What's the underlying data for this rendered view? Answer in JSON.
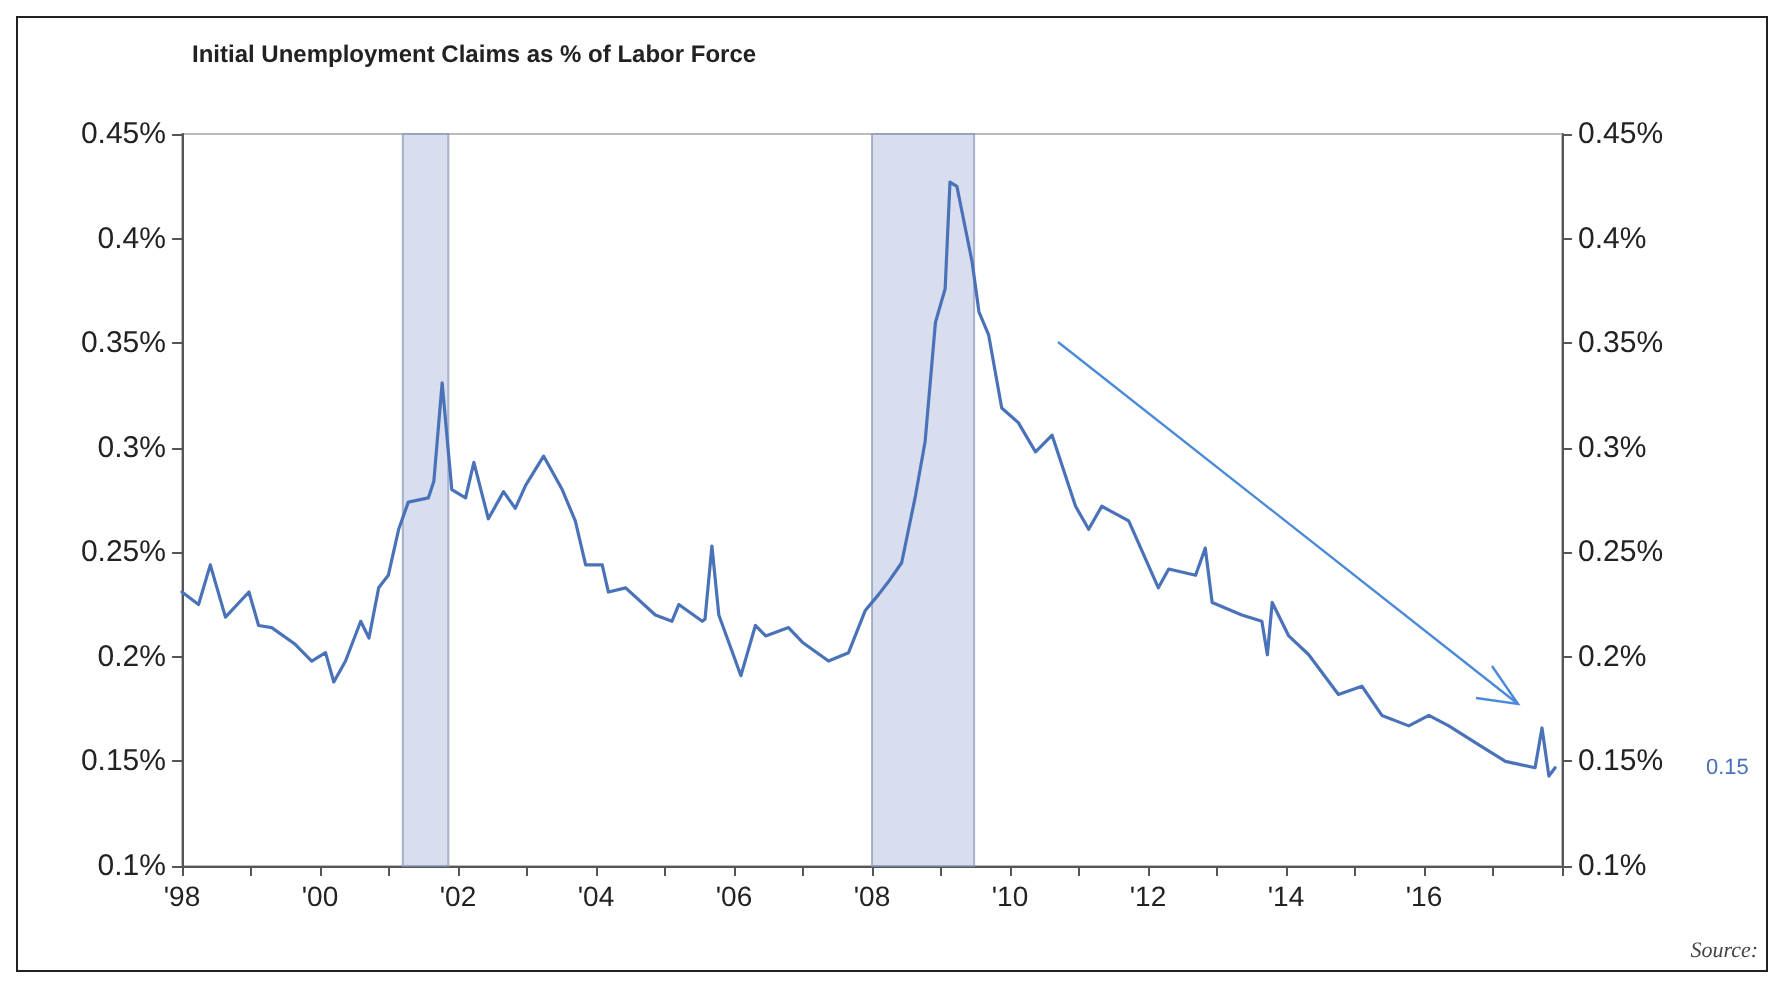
{
  "chart_data": {
    "type": "line",
    "title": "Initial Unemployment Claims as % of Labor Force",
    "x": [
      1998.0,
      1998.24,
      1998.41,
      1998.63,
      1998.97,
      1999.11,
      1999.3,
      1999.64,
      1999.88,
      2000.08,
      2000.2,
      2000.37,
      2000.59,
      2000.71,
      2000.85,
      2000.99,
      2001.14,
      2001.28,
      2001.57,
      2001.65,
      2001.77,
      2001.91,
      2002.11,
      2002.23,
      2002.44,
      2002.66,
      2002.83,
      2002.98,
      2003.24,
      2003.51,
      2003.7,
      2003.85,
      2004.09,
      2004.18,
      2004.43,
      2004.86,
      2005.1,
      2005.2,
      2005.54,
      2005.58,
      2005.68,
      2005.78,
      2006.1,
      2006.31,
      2006.46,
      2006.79,
      2006.99,
      2007.37,
      2007.66,
      2007.9,
      2008.1,
      2008.24,
      2008.43,
      2008.63,
      2008.77,
      2008.92,
      2009.06,
      2009.13,
      2009.23,
      2009.45,
      2009.55,
      2009.69,
      2009.88,
      2010.12,
      2010.37,
      2010.61,
      2010.95,
      2011.14,
      2011.33,
      2011.72,
      2012.15,
      2012.3,
      2012.69,
      2012.83,
      2012.93,
      2013.36,
      2013.65,
      2013.73,
      2013.8,
      2014.04,
      2014.33,
      2014.76,
      2015.1,
      2015.39,
      2015.78,
      2016.07,
      2016.36,
      2016.79,
      2017.18,
      2017.61,
      2017.71,
      2017.81,
      2017.9
    ],
    "series": [
      {
        "color": "#4a72b8",
        "values": [
          0.231,
          0.225,
          0.244,
          0.219,
          0.231,
          0.215,
          0.214,
          0.206,
          0.198,
          0.202,
          0.188,
          0.198,
          0.217,
          0.209,
          0.233,
          0.239,
          0.261,
          0.274,
          0.276,
          0.284,
          0.331,
          0.28,
          0.276,
          0.293,
          0.266,
          0.279,
          0.271,
          0.282,
          0.296,
          0.28,
          0.265,
          0.244,
          0.244,
          0.231,
          0.233,
          0.22,
          0.217,
          0.225,
          0.217,
          0.218,
          0.253,
          0.22,
          0.191,
          0.215,
          0.21,
          0.214,
          0.207,
          0.198,
          0.202,
          0.222,
          0.23,
          0.236,
          0.245,
          0.277,
          0.303,
          0.36,
          0.376,
          0.427,
          0.425,
          0.389,
          0.365,
          0.354,
          0.319,
          0.312,
          0.298,
          0.306,
          0.272,
          0.261,
          0.272,
          0.265,
          0.233,
          0.242,
          0.239,
          0.252,
          0.226,
          0.22,
          0.217,
          0.201,
          0.226,
          0.21,
          0.201,
          0.182,
          0.186,
          0.172,
          0.167,
          0.172,
          0.167,
          0.158,
          0.15,
          0.147,
          0.166,
          0.143,
          0.147
        ]
      }
    ],
    "xlim": [
      1998,
      2018
    ],
    "xticks": [
      {
        "value": 1998,
        "label": "'98"
      },
      {
        "value": 1999,
        "label": null
      },
      {
        "value": 2000,
        "label": "'00"
      },
      {
        "value": 2001,
        "label": null
      },
      {
        "value": 2002,
        "label": "'02"
      },
      {
        "value": 2003,
        "label": null
      },
      {
        "value": 2004,
        "label": "'04"
      },
      {
        "value": 2005,
        "label": null
      },
      {
        "value": 2006,
        "label": "'06"
      },
      {
        "value": 2007,
        "label": null
      },
      {
        "value": 2008,
        "label": "'08"
      },
      {
        "value": 2009,
        "label": null
      },
      {
        "value": 2010,
        "label": "'10"
      },
      {
        "value": 2011,
        "label": null
      },
      {
        "value": 2012,
        "label": "'12"
      },
      {
        "value": 2013,
        "label": null
      },
      {
        "value": 2014,
        "label": "'14"
      },
      {
        "value": 2015,
        "label": null
      },
      {
        "value": 2016,
        "label": "'16"
      },
      {
        "value": 2017,
        "label": null
      },
      {
        "value": 2018,
        "label": null
      }
    ],
    "ylim": [
      0.1,
      0.45
    ],
    "yticks": [
      {
        "value": 0.1,
        "label": "0.1%"
      },
      {
        "value": 0.15,
        "label": "0.15%"
      },
      {
        "value": 0.2,
        "label": "0.2%"
      },
      {
        "value": 0.25,
        "label": "0.25%"
      },
      {
        "value": 0.3,
        "label": "0.3%"
      },
      {
        "value": 0.35,
        "label": "0.35%"
      },
      {
        "value": 0.4,
        "label": "0.4%"
      },
      {
        "value": 0.45,
        "label": "0.45%"
      }
    ],
    "y2lim": [
      0.1,
      0.45
    ],
    "y2ticks": [
      {
        "value": 0.1,
        "label": "0.1%"
      },
      {
        "value": 0.15,
        "label": "0.15%"
      },
      {
        "value": 0.2,
        "label": "0.2%"
      },
      {
        "value": 0.25,
        "label": "0.25%"
      },
      {
        "value": 0.3,
        "label": "0.3%"
      },
      {
        "value": 0.35,
        "label": "0.35%"
      },
      {
        "value": 0.4,
        "label": "0.4%"
      },
      {
        "value": 0.45,
        "label": "0.45%"
      }
    ],
    "bands": [
      {
        "axis": "x",
        "from": 2001.2,
        "to": 2001.86,
        "color": "#c8d0e6"
      },
      {
        "axis": "x",
        "from": 2008.0,
        "to": 2009.48,
        "color": "#c8d0e6"
      }
    ],
    "annotations": [
      "0.15",
      "Source:"
    ],
    "grid": false,
    "marker": "none",
    "line_style": "solid"
  }
}
